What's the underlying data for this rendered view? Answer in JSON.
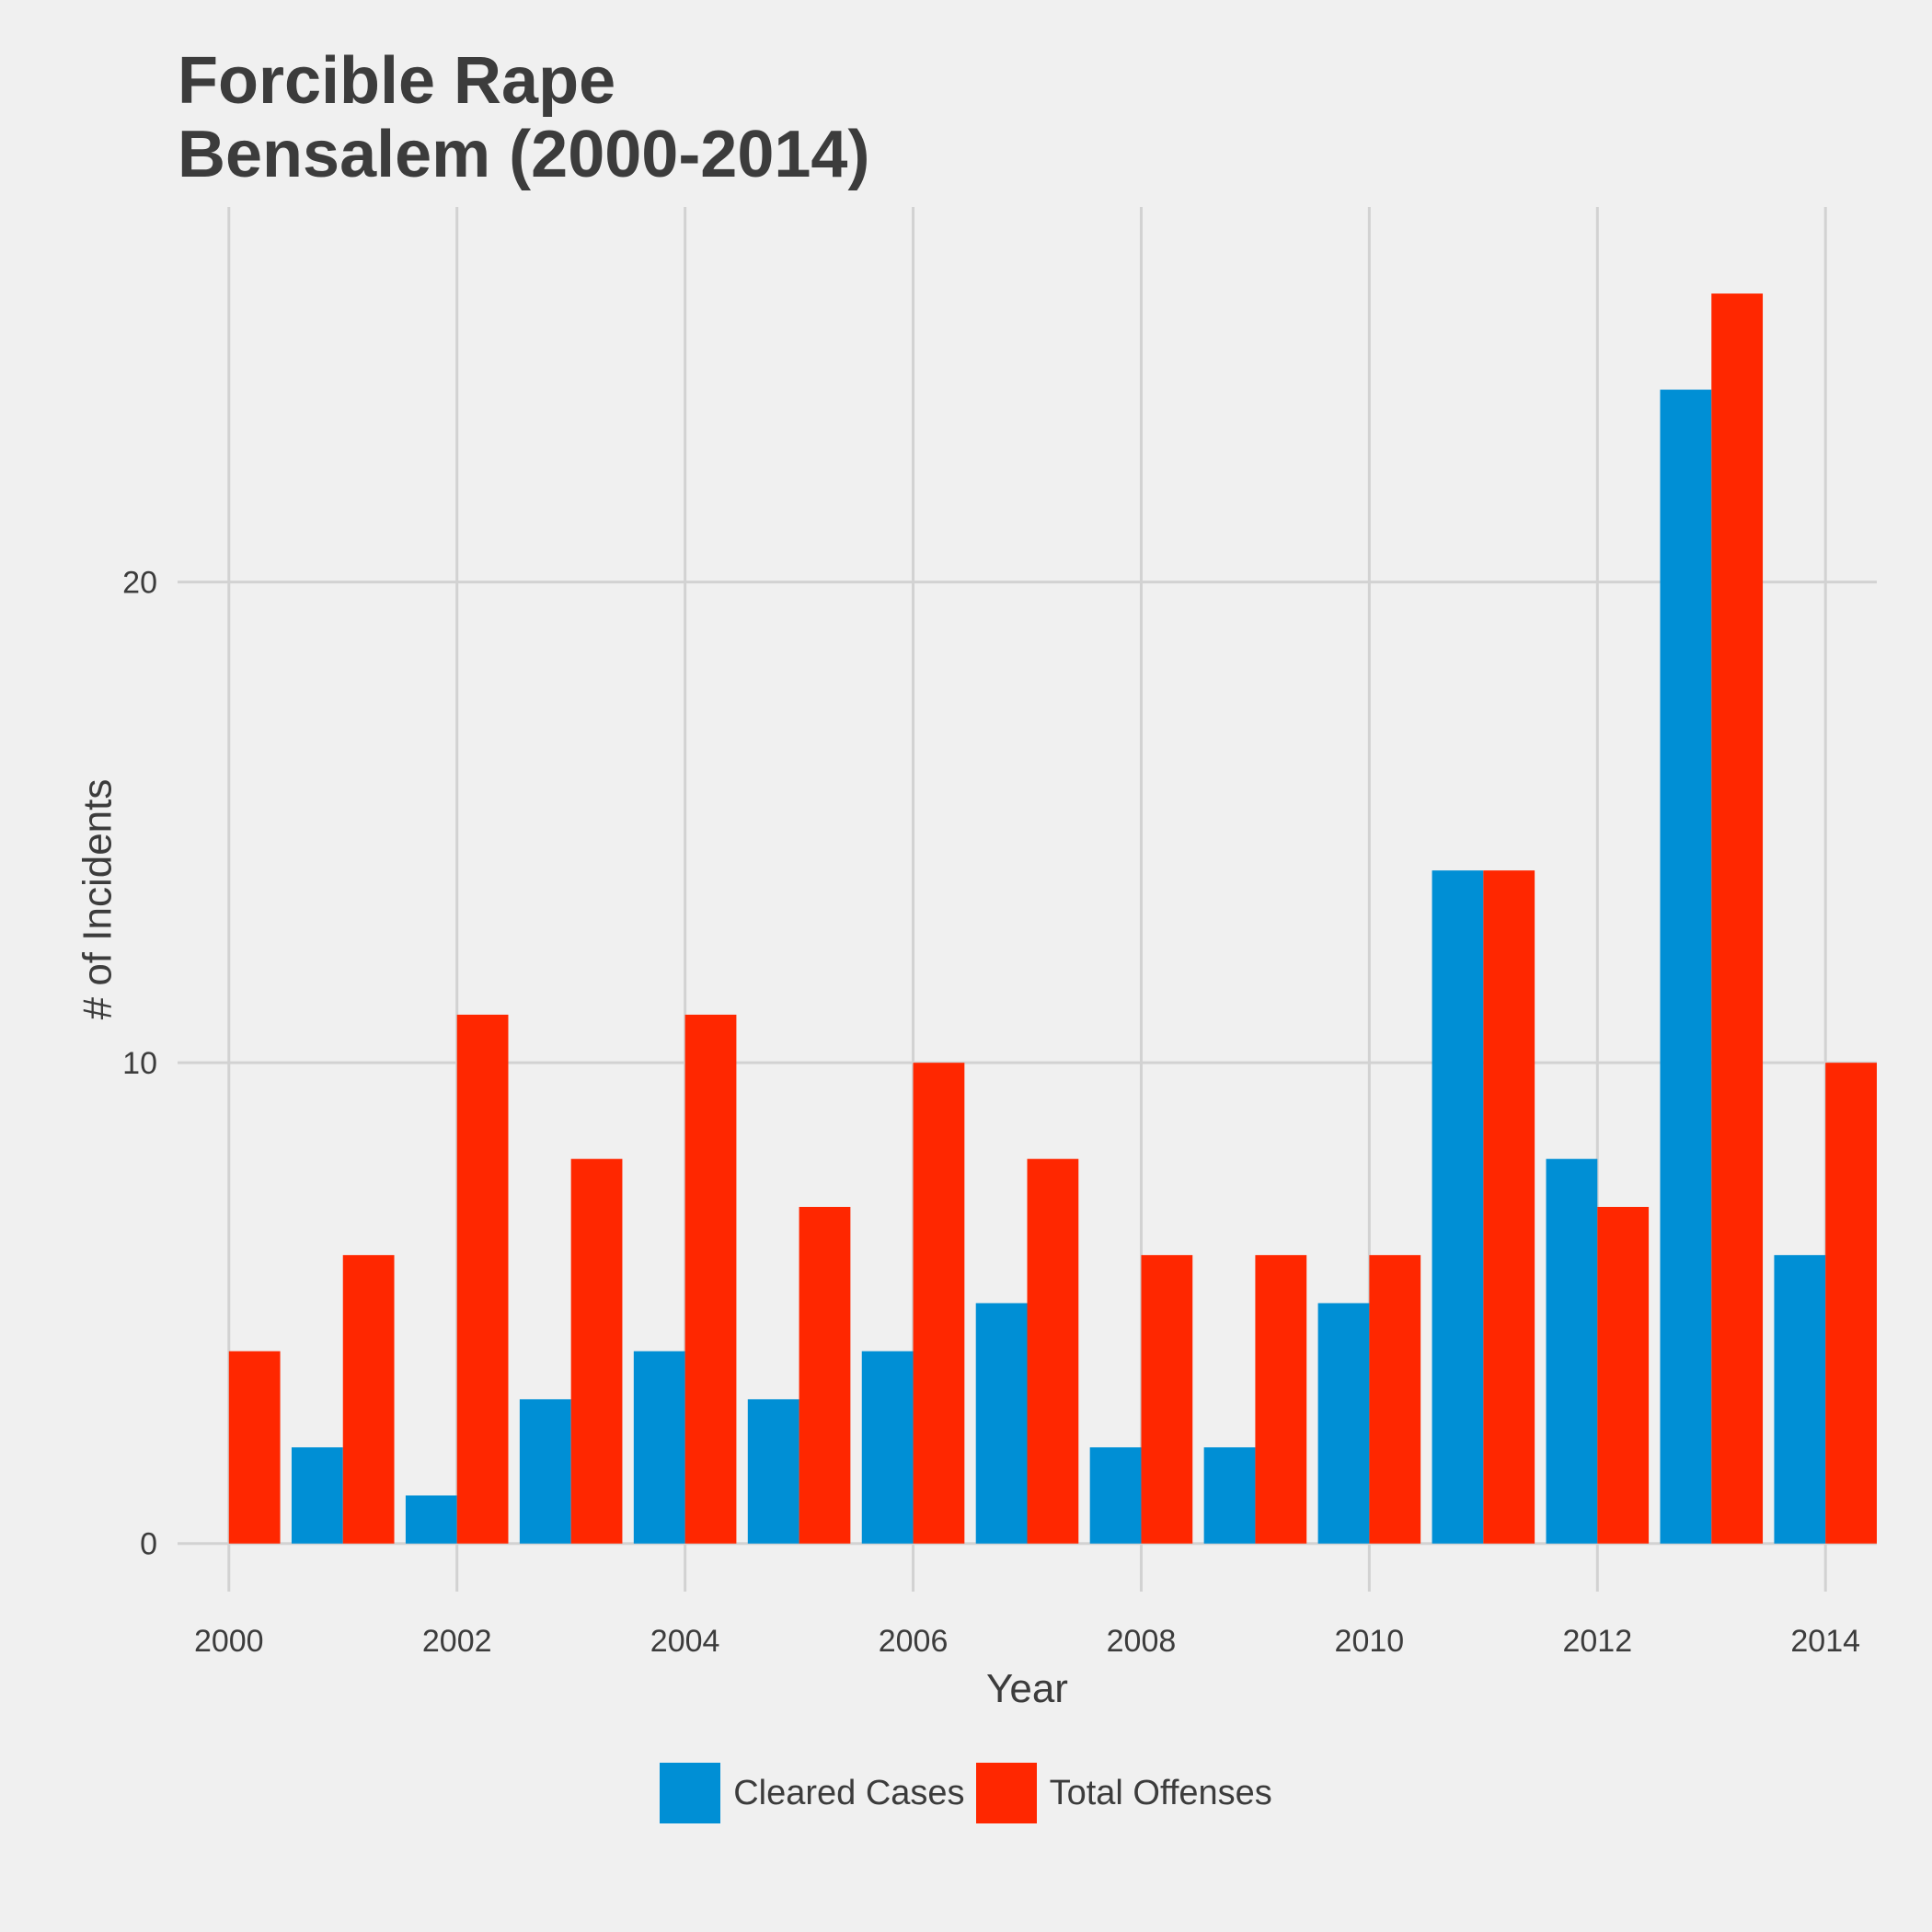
{
  "chart_data": {
    "type": "bar",
    "title": "Forcible Rape",
    "subtitle": "Bensalem (2000-2014)",
    "xlabel": "Year",
    "ylabel": "# of Incidents",
    "categories": [
      2000,
      2001,
      2002,
      2003,
      2004,
      2005,
      2006,
      2007,
      2008,
      2009,
      2010,
      2011,
      2012,
      2013,
      2014
    ],
    "x_ticks": [
      "2000",
      "2002",
      "2004",
      "2006",
      "2008",
      "2010",
      "2012",
      "2014"
    ],
    "y_ticks": [
      0,
      10,
      20
    ],
    "ylim": [
      -1,
      27.8
    ],
    "xlim": [
      1999.55,
      2014.45
    ],
    "grid": true,
    "legend_position": "bottom",
    "series": [
      {
        "name": "Cleared Cases",
        "color": "#008fd5",
        "values": [
          0,
          2,
          1,
          3,
          4,
          3,
          4,
          5,
          2,
          2,
          5,
          14,
          8,
          24,
          6
        ]
      },
      {
        "name": "Total Offenses",
        "color": "#ff2700",
        "values": [
          4,
          6,
          11,
          8,
          11,
          7,
          10,
          8,
          6,
          6,
          6,
          14,
          7,
          26,
          10
        ]
      }
    ]
  }
}
